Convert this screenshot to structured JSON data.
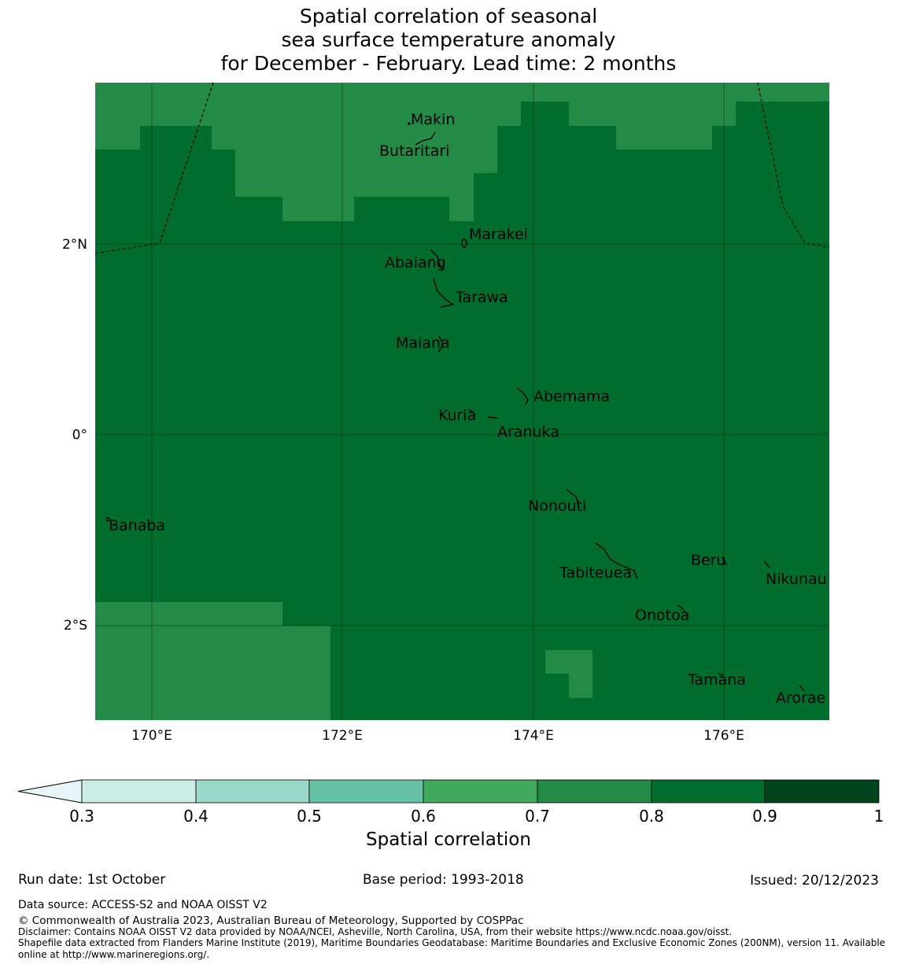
{
  "title": {
    "line1": "Spatial correlation of seasonal",
    "line2": "sea surface temperature anomaly",
    "line3": "for December - February. Lead time: 2 months"
  },
  "map": {
    "lat_labels": [
      "2°N",
      "0°",
      "2°S"
    ],
    "lon_labels": [
      "170°E",
      "172°E",
      "174°E",
      "176°E"
    ],
    "islands": [
      "Makin",
      "Butaritari",
      "Marakei",
      "Abaiang",
      "Tarawa",
      "Maiana",
      "Abemama",
      "Kuria",
      "Aranuka",
      "Nonouti",
      "Banaba",
      "Tabiteuea",
      "Beru",
      "Nikunau",
      "Onotoa",
      "Tamana",
      "Arorae"
    ],
    "colors": {
      "c07": "#238b45",
      "c08": "#006d2c",
      "c06": "#41ab5d"
    }
  },
  "colorbar": {
    "title": "Spatial correlation",
    "ticks": [
      "0.3",
      "0.4",
      "0.5",
      "0.6",
      "0.7",
      "0.8",
      "0.9",
      "1"
    ],
    "colors": [
      "#e5f5f9",
      "#ccece6",
      "#99d8c9",
      "#66c2a4",
      "#41ab5d",
      "#238b45",
      "#006d2c",
      "#00441b"
    ]
  },
  "footer": {
    "run_date": "Run date: 1st October",
    "base_period": "Base period: 1993-2018",
    "issued": "Issued: 20/12/2023",
    "data_source": "Data source: ACCESS-S2 and NOAA OISST V2",
    "copyright": "© Commonwealth of Australia 2023, Australian Bureau of Meteorology, Supported by COSPPac",
    "disclaimer": "Disclaimer: Contains NOAA OISST V2 data provided by NOAA/NCEI, Asheville, North Carolina, USA, from their website https://www.ncdc.noaa.gov/oisst.",
    "shapefile": "Shapefile data extracted from Flanders Marine Institute (2019), Maritime Boundaries Geodatabase: Maritime Boundaries and Exclusive Economic Zones (200NM), version 11. Available online at http://www.marineregions.org/."
  }
}
